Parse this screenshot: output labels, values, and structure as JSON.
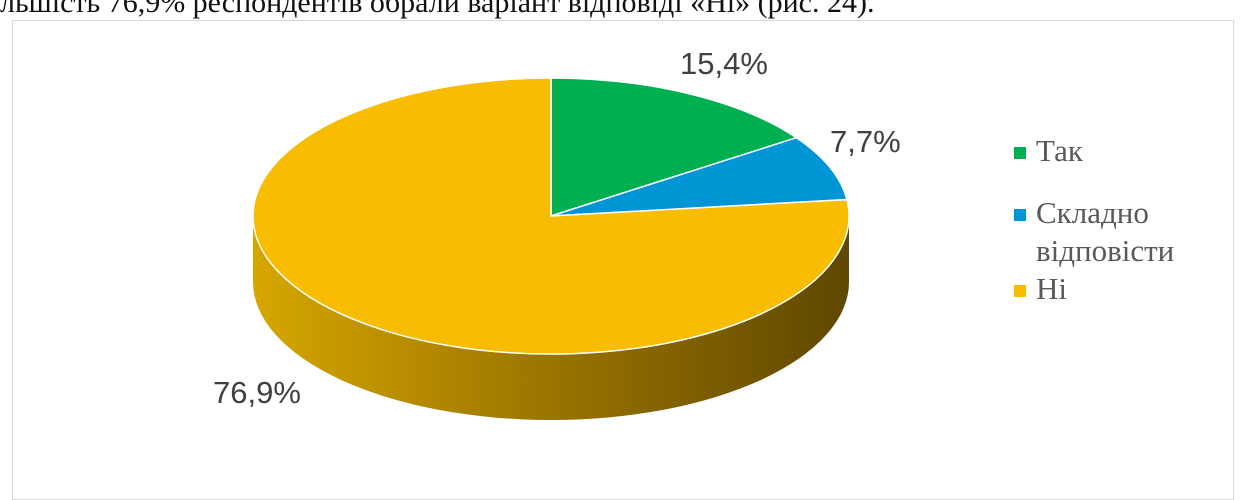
{
  "document": {
    "text_line": "льшість 76,9% респондентів обрали варіант відповіді «Ні» (рис. 24)."
  },
  "chart_data": {
    "type": "pie",
    "style": "3d",
    "categories": [
      "Так",
      "Складно відповісти",
      "Ні"
    ],
    "values": [
      15.4,
      7.7,
      76.9
    ],
    "data_labels": [
      "15,4%",
      "7,7%",
      "76,9%"
    ],
    "colors": [
      "#00B050",
      "#0096D6",
      "#F8BC00"
    ],
    "legend_position": "right",
    "title": "",
    "xlabel": "",
    "ylabel": ""
  }
}
